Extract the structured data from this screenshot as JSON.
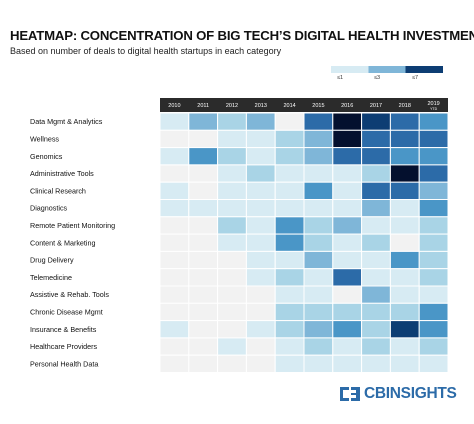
{
  "colors": {
    "level0": "#f2f2f2",
    "level1": "#d7ebf3",
    "level2": "#a9d4e6",
    "level3": "#7fb6d8",
    "level4": "#4a96c7",
    "level5": "#2c6ba8",
    "level6": "#0d3d73",
    "level7": "#04102e",
    "header_bg": "#2b2b2b",
    "brand": "#2c6ba8"
  },
  "legend": {
    "low": "≤1",
    "mid": "≤3",
    "high": "≤7"
  },
  "logo": {
    "text": "CBINSIGHTS",
    "icon": "cb-logo-icon"
  },
  "chart_data": {
    "type": "heatmap",
    "title": "HEATMAP: CONCENTRATION OF BIG TECH’S DIGITAL HEALTH INVESTMENTS",
    "subtitle": "Based on number of deals to digital health startups in each category",
    "columns": [
      {
        "label": "2010"
      },
      {
        "label": "2011"
      },
      {
        "label": "2012"
      },
      {
        "label": "2013"
      },
      {
        "label": "2014"
      },
      {
        "label": "2015"
      },
      {
        "label": "2016"
      },
      {
        "label": "2017"
      },
      {
        "label": "2018"
      },
      {
        "label": "2019",
        "sub": "YTD"
      }
    ],
    "rows": [
      "Data Mgmt & Analytics",
      "Wellness",
      "Genomics",
      "Administrative Tools",
      "Clinical Research",
      "Diagnostics",
      "Remote Patient Monitoring",
      "Content & Marketing",
      "Drug Delivery",
      "Telemedicine",
      "Assistive & Rehab. Tools",
      "Chronic Disease Mgmt",
      "Insurance & Benefits",
      "Healthcare Providers",
      "Personal Health Data"
    ],
    "levels": [
      [
        1,
        3,
        2,
        3,
        0,
        5,
        7,
        6,
        5,
        4
      ],
      [
        0,
        0,
        1,
        1,
        2,
        3,
        7,
        5,
        5,
        5
      ],
      [
        1,
        4,
        2,
        1,
        2,
        3,
        5,
        5,
        4,
        4
      ],
      [
        0,
        0,
        1,
        2,
        1,
        1,
        1,
        2,
        7,
        5
      ],
      [
        1,
        0,
        1,
        1,
        1,
        4,
        1,
        5,
        5,
        3
      ],
      [
        1,
        1,
        1,
        1,
        1,
        1,
        1,
        3,
        1,
        4
      ],
      [
        0,
        0,
        2,
        1,
        4,
        2,
        3,
        1,
        1,
        2
      ],
      [
        0,
        0,
        1,
        1,
        4,
        2,
        1,
        2,
        0,
        2
      ],
      [
        0,
        0,
        0,
        1,
        1,
        3,
        1,
        1,
        4,
        2
      ],
      [
        0,
        0,
        0,
        1,
        2,
        1,
        5,
        1,
        1,
        2
      ],
      [
        0,
        0,
        0,
        0,
        1,
        1,
        0,
        3,
        1,
        1
      ],
      [
        0,
        0,
        0,
        0,
        2,
        2,
        2,
        2,
        2,
        4
      ],
      [
        1,
        0,
        0,
        1,
        2,
        3,
        4,
        2,
        6,
        4
      ],
      [
        0,
        0,
        1,
        0,
        1,
        2,
        1,
        2,
        1,
        2
      ],
      [
        0,
        0,
        0,
        0,
        1,
        1,
        1,
        1,
        1,
        1
      ]
    ]
  }
}
